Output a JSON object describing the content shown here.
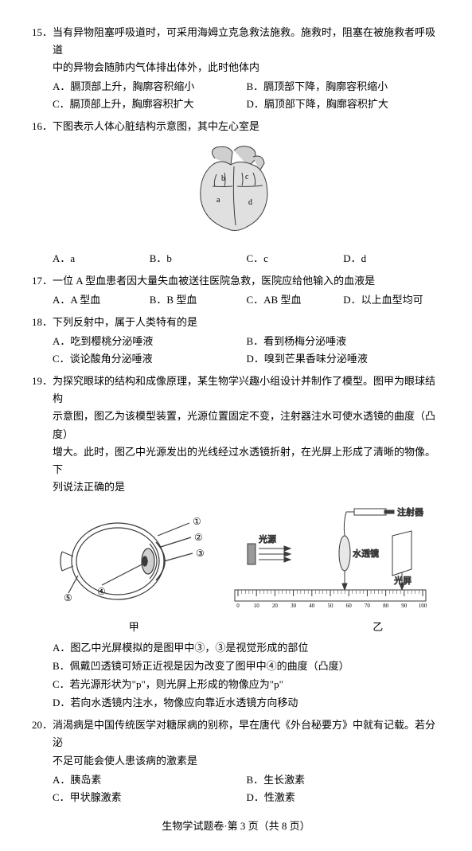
{
  "q15": {
    "num": "15．",
    "text1": "当有异物阻塞呼吸道时，可采用海姆立克急救法施救。施救时，阻塞在被施救者呼吸道",
    "text2": "中的异物会随肺内气体排出体外，此时他体内",
    "optA": "A．膈顶部上升，胸廓容积缩小",
    "optB": "B．膈顶部下降，胸廓容积缩小",
    "optC": "C．膈顶部上升，胸廓容积扩大",
    "optD": "D．膈顶部下降，胸廓容积扩大"
  },
  "q16": {
    "num": "16．",
    "text": "下图表示人体心脏结构示意图，其中左心室是",
    "optA": "A．a",
    "optB": "B．b",
    "optC": "C．c",
    "optD": "D．d"
  },
  "q17": {
    "num": "17．",
    "text": "一位 A 型血患者因大量失血被送往医院急救，医院应给他输入的血液是",
    "optA": "A．A 型血",
    "optB": "B．B 型血",
    "optC": "C．AB 型血",
    "optD": "D．以上血型均可"
  },
  "q18": {
    "num": "18．",
    "text": "下列反射中，属于人类特有的是",
    "optA": "A．吃到樱桃分泌唾液",
    "optB": "B．看到杨梅分泌唾液",
    "optC": "C．谈论酸角分泌唾液",
    "optD": "D．嗅到芒果香味分泌唾液"
  },
  "q19": {
    "num": "19．",
    "text1": "为探究眼球的结构和成像原理，某生物学兴趣小组设计并制作了模型。图甲为眼球结构",
    "text2": "示意图，图乙为该模型装置，光源位置固定不变，注射器注水可使水透镜的曲度（凸度）",
    "text3": "增大。此时，图乙中光源发出的光线经过水透镜折射，在光屏上形成了清晰的物像。下",
    "text4": "列说法正确的是",
    "stmtA": "A．图乙中光屏模拟的是图甲中③，③是视觉形成的部位",
    "stmtB": "B．佩戴凹透镜可矫正近视是因为改变了图甲中④的曲度（凸度）",
    "stmtC": "C．若光源形状为\"p\"，则光屏上形成的物像应为\"p\"",
    "stmtD": "D．若向水透镜内注水，物像应向靠近水透镜方向移动",
    "capJia": "甲",
    "capYi": "乙",
    "labels": {
      "l1": "①",
      "l2": "②",
      "l3": "③",
      "l4": "④",
      "l5": "⑤",
      "syringe": "注射器",
      "light": "光源",
      "lens": "水透镜",
      "screen": "光屏",
      "ruler_vals": [
        "0",
        "10",
        "20",
        "30",
        "40",
        "50",
        "60",
        "70",
        "80",
        "90",
        "100"
      ]
    }
  },
  "q20": {
    "num": "20．",
    "text1": "消渴病是中国传统医学对糖尿病的别称，早在唐代《外台秘要方》中就有记载。若分泌",
    "text2": "不足可能会使人患该病的激素是",
    "optA": "A．胰岛素",
    "optB": "B．生长激素",
    "optC": "C．甲状腺激素",
    "optD": "D．性激素"
  },
  "footer": "生物学试题卷·第 3 页（共 8 页）",
  "colors": {
    "stroke": "#3a3a3a",
    "fill_light": "#cfcfcf",
    "fill_med": "#9a9a9a"
  }
}
